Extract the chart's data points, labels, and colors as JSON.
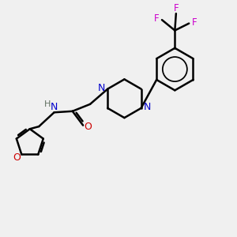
{
  "bg_color": "#f0f0f0",
  "bond_color": "#000000",
  "N_color": "#0000cc",
  "O_color": "#cc0000",
  "F_color": "#cc00cc",
  "H_color": "#607060",
  "bond_width": 1.8,
  "figsize": [
    3.0,
    3.0
  ],
  "dpi": 100,
  "xlim": [
    0,
    10
  ],
  "ylim": [
    0,
    10
  ]
}
